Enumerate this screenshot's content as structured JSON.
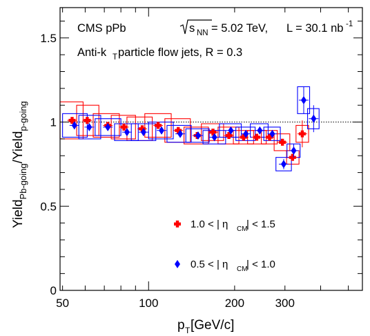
{
  "chart_data": {
    "type": "scatter",
    "title": "",
    "annotations": {
      "line1_prefix": "CMS pPb ",
      "line1_sqrt": "s",
      "line1_sqrt_sub": "NN",
      "line1_energy": " = 5.02 TeV,",
      "line1_lumi": "L = 30.1 nb",
      "line1_lumi_sup": "-1",
      "line2_main": "Anti-k",
      "line2_sub": "T",
      "line2_rest": " particle flow jets,  R = 0.3"
    },
    "xlabel": {
      "main": "p",
      "sub": "T",
      "rest": " [GeV/c]"
    },
    "ylabel": {
      "main": "Yield",
      "sub_num": "Pb-going",
      "slash": "/Yield",
      "sub_den": "p-going"
    },
    "xscale": "log",
    "xlim": [
      49,
      560
    ],
    "ylim": [
      0,
      1.68
    ],
    "x_ticks": [
      {
        "value": 50,
        "label": "50"
      },
      {
        "value": 100,
        "label": "100"
      },
      {
        "value": 200,
        "label": "200"
      },
      {
        "value": 300,
        "label": "300"
      }
    ],
    "y_ticks": [
      {
        "value": 0,
        "label": "0"
      },
      {
        "value": 0.5,
        "label": "0.5"
      },
      {
        "value": 1,
        "label": "1"
      },
      {
        "value": 1.5,
        "label": "1.5"
      }
    ],
    "reference_line": 1.0,
    "legend_placement": "bottom-center",
    "series": [
      {
        "name": "1.0 < | η_CM | < 1.5",
        "legend_parts": {
          "pre": "1.0 < | η",
          "sub": "CM",
          "post": " | < 1.5"
        },
        "marker": "cross",
        "color": "#ff0000",
        "points": [
          {
            "x": 54,
            "y": 1.01,
            "xlo": 49,
            "xhi": 59,
            "stat": 0.01,
            "syst": 0.11
          },
          {
            "x": 61,
            "y": 1.01,
            "xlo": 56,
            "xhi": 67,
            "stat": 0.01,
            "syst": 0.09
          },
          {
            "x": 72,
            "y": 0.98,
            "xlo": 64,
            "xhi": 79,
            "stat": 0.01,
            "syst": 0.07
          },
          {
            "x": 82,
            "y": 0.97,
            "xlo": 74,
            "xhi": 90,
            "stat": 0.01,
            "syst": 0.07
          },
          {
            "x": 95,
            "y": 0.96,
            "xlo": 84,
            "xhi": 103,
            "stat": 0.01,
            "syst": 0.07
          },
          {
            "x": 108,
            "y": 0.98,
            "xlo": 97,
            "xhi": 120,
            "stat": 0.01,
            "syst": 0.07
          },
          {
            "x": 127,
            "y": 0.95,
            "xlo": 114,
            "xhi": 140,
            "stat": 0.01,
            "syst": 0.07
          },
          {
            "x": 148,
            "y": 0.92,
            "xlo": 133,
            "xhi": 162,
            "stat": 0.01,
            "syst": 0.05
          },
          {
            "x": 168,
            "y": 0.94,
            "xlo": 153,
            "xhi": 183,
            "stat": 0.01,
            "syst": 0.05
          },
          {
            "x": 191,
            "y": 0.92,
            "xlo": 175,
            "xhi": 207,
            "stat": 0.01,
            "syst": 0.05
          },
          {
            "x": 215,
            "y": 0.91,
            "xlo": 198,
            "xhi": 233,
            "stat": 0.01,
            "syst": 0.04
          },
          {
            "x": 239,
            "y": 0.91,
            "xlo": 222,
            "xhi": 258,
            "stat": 0.01,
            "syst": 0.04
          },
          {
            "x": 265,
            "y": 0.91,
            "xlo": 248,
            "xhi": 282,
            "stat": 0.01,
            "syst": 0.04
          },
          {
            "x": 294,
            "y": 0.88,
            "xlo": 275,
            "xhi": 312,
            "stat": 0.02,
            "syst": 0.05
          },
          {
            "x": 319,
            "y": 0.79,
            "xlo": 304,
            "xhi": 336,
            "stat": 0.02,
            "syst": 0.04
          },
          {
            "x": 345,
            "y": 0.93,
            "xlo": 328,
            "xhi": 363,
            "stat": 0.08,
            "syst": 0.05
          }
        ]
      },
      {
        "name": "0.5 < | η_CM | < 1.0",
        "legend_parts": {
          "pre": "0.5 < | η",
          "sub": "CM",
          "post": " | < 1.0"
        },
        "marker": "diamond",
        "color": "#0000ff",
        "points": [
          {
            "x": 55,
            "y": 0.98,
            "xlo": 50,
            "xhi": 61,
            "stat": 0.01,
            "syst": 0.07
          },
          {
            "x": 62,
            "y": 0.97,
            "xlo": 57,
            "xhi": 68,
            "stat": 0.01,
            "syst": 0.07
          },
          {
            "x": 72,
            "y": 0.97,
            "xlo": 65,
            "xhi": 80,
            "stat": 0.01,
            "syst": 0.05
          },
          {
            "x": 84,
            "y": 0.94,
            "xlo": 76,
            "xhi": 92,
            "stat": 0.01,
            "syst": 0.05
          },
          {
            "x": 96,
            "y": 0.94,
            "xlo": 87,
            "xhi": 106,
            "stat": 0.01,
            "syst": 0.05
          },
          {
            "x": 111,
            "y": 0.95,
            "xlo": 100,
            "xhi": 122,
            "stat": 0.01,
            "syst": 0.05
          },
          {
            "x": 129,
            "y": 0.93,
            "xlo": 116,
            "xhi": 141,
            "stat": 0.01,
            "syst": 0.05
          },
          {
            "x": 149,
            "y": 0.92,
            "xlo": 135,
            "xhi": 163,
            "stat": 0.01,
            "syst": 0.04
          },
          {
            "x": 170,
            "y": 0.91,
            "xlo": 155,
            "xhi": 186,
            "stat": 0.01,
            "syst": 0.04
          },
          {
            "x": 194,
            "y": 0.95,
            "xlo": 177,
            "xhi": 211,
            "stat": 0.01,
            "syst": 0.04
          },
          {
            "x": 219,
            "y": 0.93,
            "xlo": 202,
            "xhi": 236,
            "stat": 0.01,
            "syst": 0.04
          },
          {
            "x": 245,
            "y": 0.95,
            "xlo": 227,
            "xhi": 262,
            "stat": 0.01,
            "syst": 0.04
          },
          {
            "x": 271,
            "y": 0.93,
            "xlo": 253,
            "xhi": 289,
            "stat": 0.02,
            "syst": 0.04
          },
          {
            "x": 297,
            "y": 0.75,
            "xlo": 279,
            "xhi": 316,
            "stat": 0.03,
            "syst": 0.04
          },
          {
            "x": 322,
            "y": 0.83,
            "xlo": 305,
            "xhi": 339,
            "stat": 0.04,
            "syst": 0.04
          },
          {
            "x": 349,
            "y": 1.13,
            "xlo": 332,
            "xhi": 366,
            "stat": 0.08,
            "syst": 0.08
          },
          {
            "x": 378,
            "y": 1.02,
            "xlo": 360,
            "xhi": 395,
            "stat": 0.08,
            "syst": 0.06
          }
        ]
      }
    ]
  }
}
